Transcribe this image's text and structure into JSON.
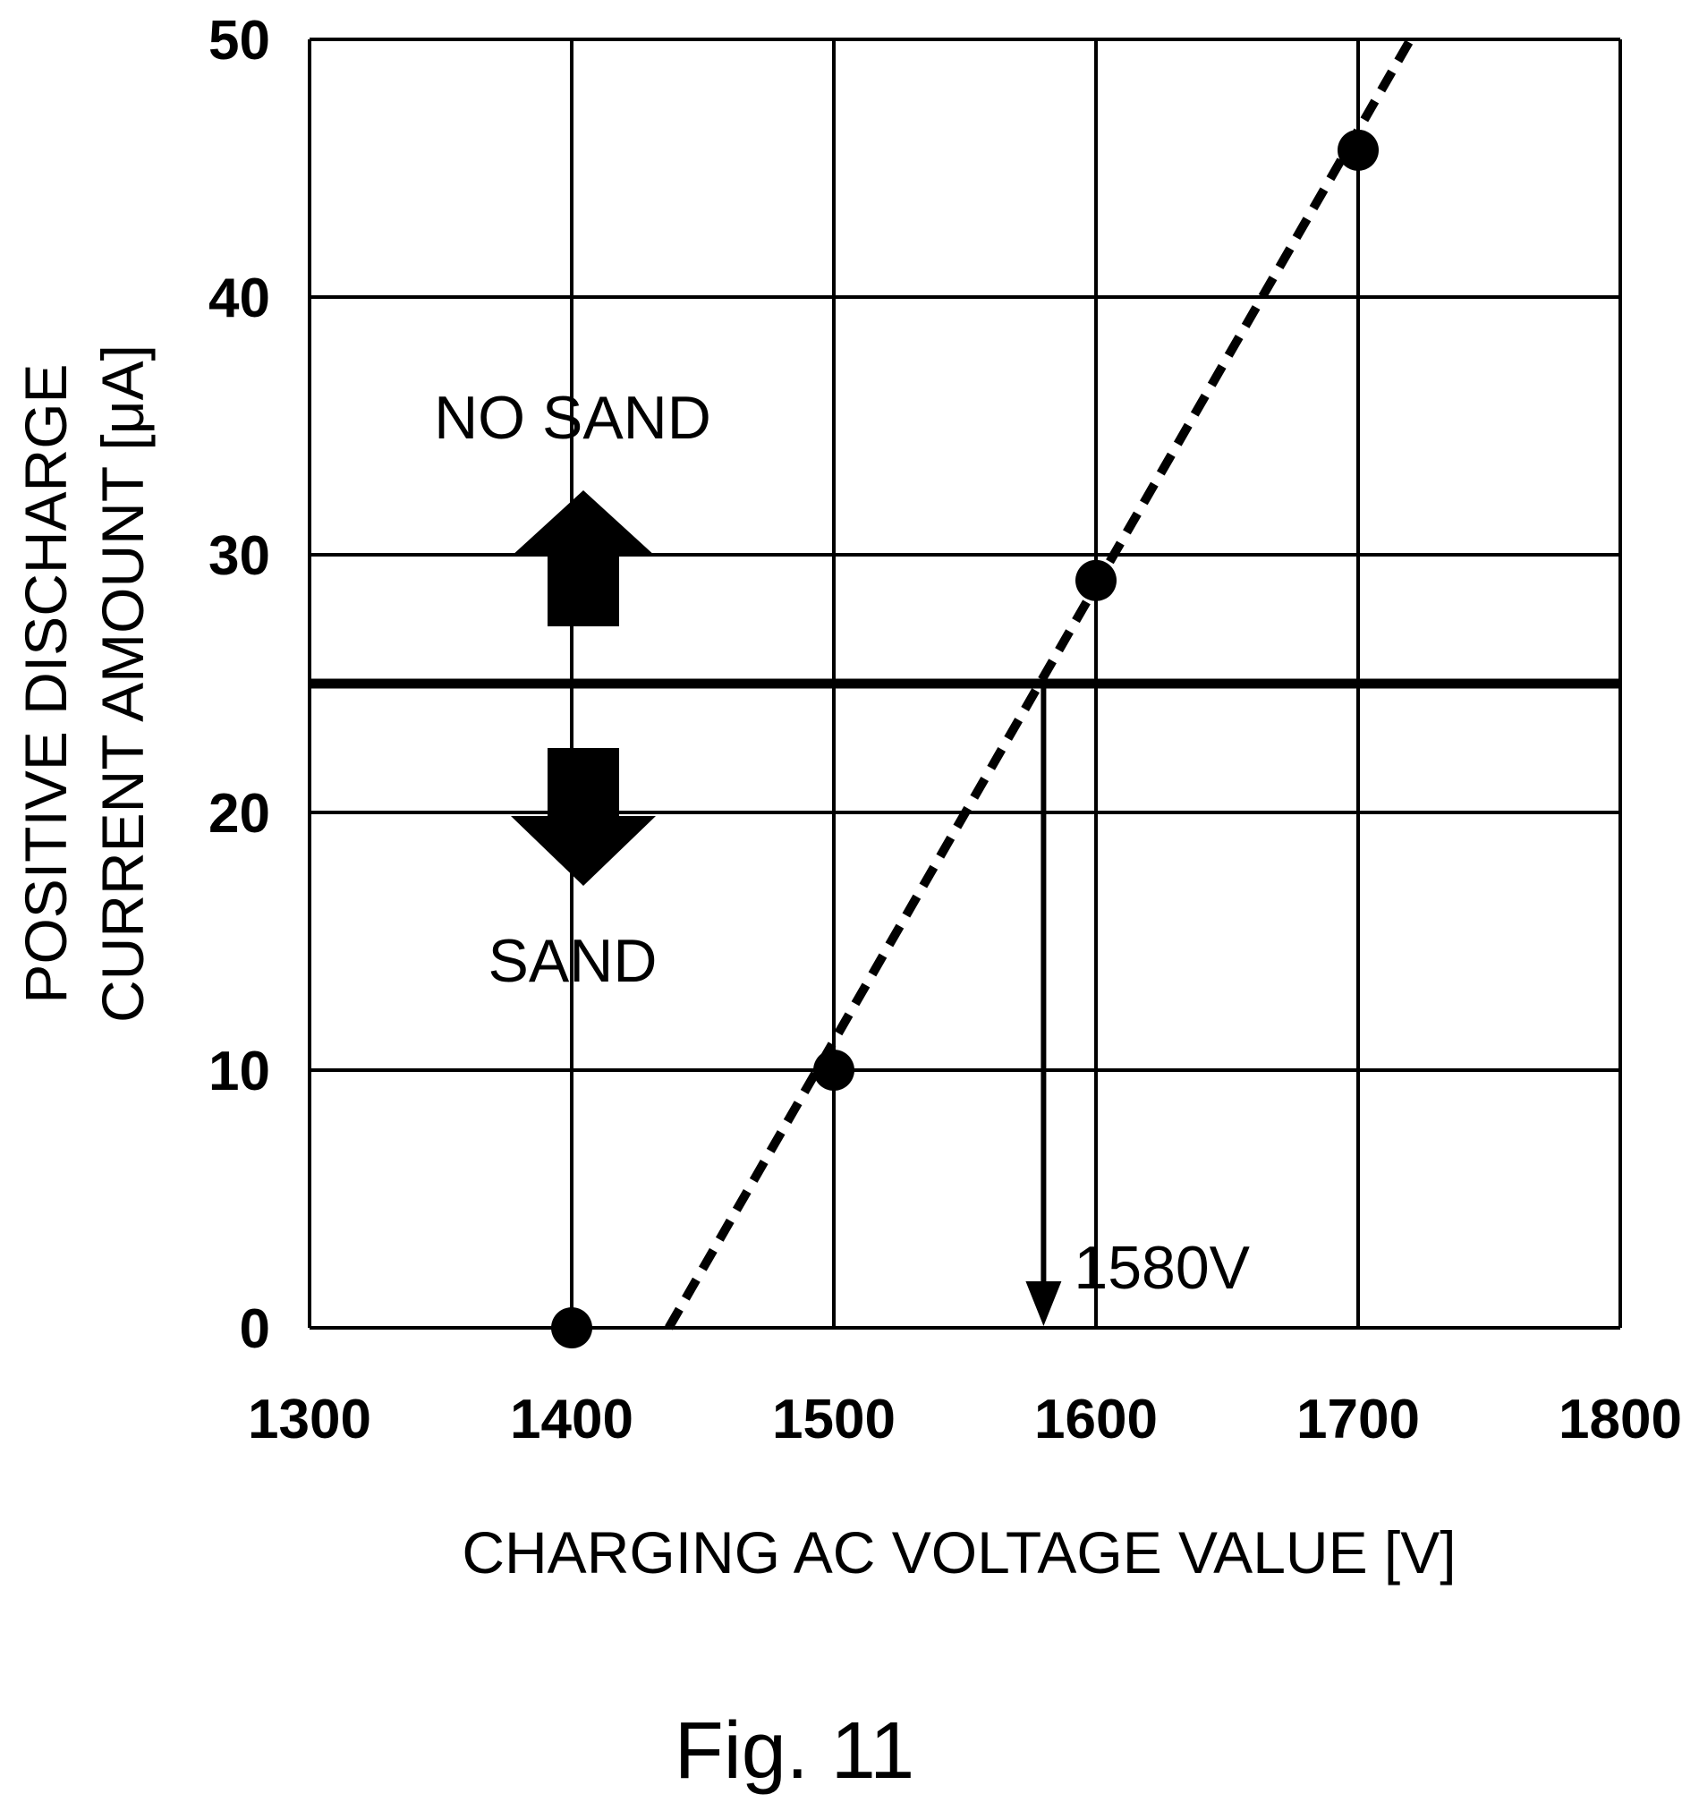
{
  "chart_data": {
    "type": "scatter",
    "xlabel": "CHARGING AC VOLTAGE VALUE [V]",
    "ylabel_line1": "POSITIVE DISCHARGE",
    "ylabel_line2": "CURRENT AMOUNT [μA]",
    "xlim": [
      1300,
      1800
    ],
    "ylim": [
      0,
      50
    ],
    "x_ticks": [
      1300,
      1400,
      1500,
      1600,
      1700,
      1800
    ],
    "y_ticks": [
      0,
      10,
      20,
      30,
      40,
      50
    ],
    "grid": true,
    "series": [
      {
        "x": [
          1400,
          1500,
          1600,
          1700
        ],
        "y": [
          0,
          10,
          29,
          45.7
        ]
      }
    ],
    "trend_line": {
      "style": "dashed",
      "x": [
        1437,
        1720
      ],
      "y": [
        0,
        50
      ]
    },
    "threshold": {
      "y": 25,
      "x": 1580,
      "label": "1580V"
    },
    "annotations": {
      "no_sand": "NO SAND",
      "sand": "SAND"
    },
    "caption": "Fig. 11"
  }
}
